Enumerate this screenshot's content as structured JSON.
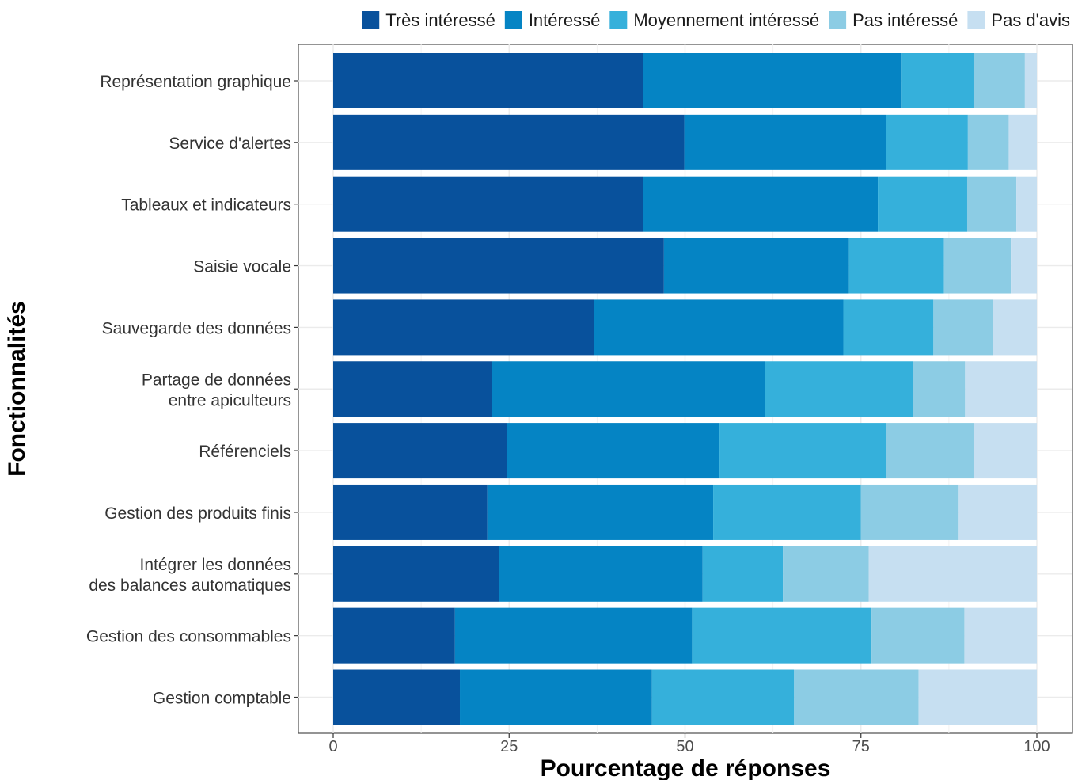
{
  "chart_data": {
    "type": "bar",
    "orientation": "horizontal",
    "stacked": true,
    "xlabel": "Pourcentage de réponses",
    "ylabel": "Fonctionnalités",
    "xlim": [
      0,
      100
    ],
    "xticks": [
      "0",
      "25",
      "50",
      "75",
      "100"
    ],
    "grid": true,
    "legend_position": "top",
    "categories": [
      [
        "Représentation graphique"
      ],
      [
        "Service d'alertes"
      ],
      [
        "Tableaux et indicateurs"
      ],
      [
        "Saisie vocale"
      ],
      [
        "Sauvegarde des données"
      ],
      [
        "Partage de données",
        "entre apiculteurs"
      ],
      [
        "Référenciels"
      ],
      [
        "Gestion des produits finis"
      ],
      [
        "Intégrer les données",
        "des balances automatiques"
      ],
      [
        "Gestion des consommables"
      ],
      [
        "Gestion comptable"
      ]
    ],
    "series": [
      {
        "name": "Très intéressé",
        "color": "#08519c",
        "values": [
          44.0,
          49.9,
          44.0,
          47.0,
          37.1,
          22.6,
          24.7,
          21.9,
          23.6,
          17.3,
          18.0
        ]
      },
      {
        "name": "Intéressé",
        "color": "#0584c4",
        "values": [
          36.8,
          28.7,
          33.4,
          26.3,
          35.4,
          38.8,
          30.2,
          32.1,
          28.9,
          33.7,
          27.3
        ]
      },
      {
        "name": "Moyennement intéressé",
        "color": "#35b0db",
        "values": [
          10.2,
          11.6,
          12.7,
          13.5,
          12.8,
          21.0,
          23.7,
          21.0,
          11.4,
          25.5,
          20.2
        ]
      },
      {
        "name": "Pas intéressé",
        "color": "#8ccce4",
        "values": [
          7.3,
          5.8,
          7.0,
          9.5,
          8.5,
          7.4,
          12.4,
          13.9,
          12.2,
          13.2,
          17.7
        ]
      },
      {
        "name": "Pas d'avis",
        "color": "#c6dff1",
        "values": [
          1.7,
          4.0,
          2.9,
          3.7,
          6.2,
          10.2,
          9.0,
          11.1,
          23.9,
          10.3,
          16.8
        ]
      }
    ]
  }
}
